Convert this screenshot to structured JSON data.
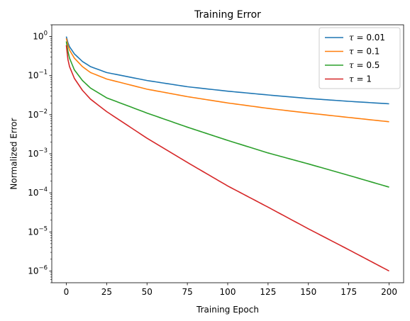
{
  "chart_data": {
    "type": "line",
    "title": "Training Error",
    "xlabel": "Training Epoch",
    "ylabel": "Normalized Error",
    "xlim": [
      -9,
      209
    ],
    "ylim": [
      5e-07,
      2.0
    ],
    "yscale": "log",
    "grid": false,
    "legend_position": "top-right",
    "x_ticks": [
      0,
      25,
      50,
      75,
      100,
      125,
      150,
      175,
      200
    ],
    "y_ticks": [
      {
        "value": 1.0,
        "base": "10",
        "exp": "0"
      },
      {
        "value": 0.1,
        "base": "10",
        "exp": "−1"
      },
      {
        "value": 0.01,
        "base": "10",
        "exp": "−2"
      },
      {
        "value": 0.001,
        "base": "10",
        "exp": "−3"
      },
      {
        "value": 0.0001,
        "base": "10",
        "exp": "−4"
      },
      {
        "value": 1e-05,
        "base": "10",
        "exp": "−5"
      },
      {
        "value": 1e-06,
        "base": "10",
        "exp": "−6"
      }
    ],
    "series": [
      {
        "name": "τ = 0.01",
        "symbol": "τ",
        "label_value": " = 0.01",
        "color": "#1f77b4",
        "x": [
          0,
          1,
          2,
          5,
          10,
          15,
          25,
          50,
          75,
          100,
          125,
          150,
          175,
          200
        ],
        "y": [
          1.0,
          0.7,
          0.55,
          0.36,
          0.23,
          0.17,
          0.12,
          0.075,
          0.052,
          0.04,
          0.032,
          0.026,
          0.022,
          0.019
        ]
      },
      {
        "name": "τ = 0.1",
        "symbol": "τ",
        "label_value": " = 0.1",
        "color": "#ff7f0e",
        "x": [
          0,
          1,
          2,
          5,
          10,
          15,
          25,
          50,
          75,
          100,
          125,
          150,
          175,
          200
        ],
        "y": [
          0.9,
          0.6,
          0.45,
          0.28,
          0.17,
          0.12,
          0.082,
          0.045,
          0.029,
          0.02,
          0.0145,
          0.011,
          0.0085,
          0.0066
        ]
      },
      {
        "name": "τ = 0.5",
        "symbol": "τ",
        "label_value": " = 0.5",
        "color": "#2ca02c",
        "x": [
          0,
          1,
          2,
          5,
          10,
          15,
          25,
          50,
          75,
          100,
          125,
          150,
          175,
          200
        ],
        "y": [
          0.75,
          0.42,
          0.28,
          0.14,
          0.075,
          0.048,
          0.027,
          0.011,
          0.0048,
          0.0022,
          0.00105,
          0.00055,
          0.00028,
          0.00014
        ]
      },
      {
        "name": "τ = 1",
        "symbol": "τ",
        "label_value": " = 1",
        "color": "#d62728",
        "x": [
          0,
          1,
          2,
          5,
          10,
          15,
          25,
          50,
          75,
          100,
          125,
          150,
          175,
          200
        ],
        "y": [
          0.6,
          0.26,
          0.17,
          0.085,
          0.042,
          0.025,
          0.012,
          0.0025,
          0.0006,
          0.00015,
          4.3e-05,
          1.2e-05,
          3.5e-06,
          1e-06
        ]
      }
    ]
  }
}
